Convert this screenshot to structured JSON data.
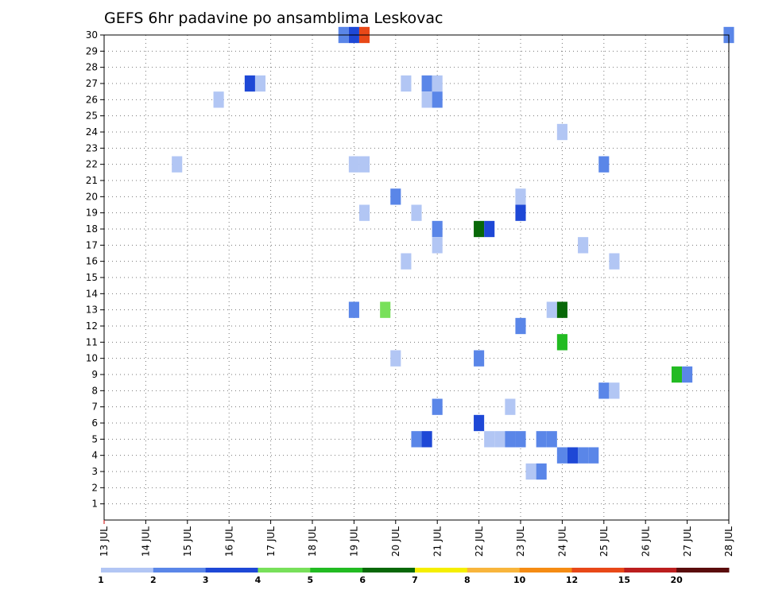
{
  "chart_data": {
    "type": "heatmap",
    "title": "GEFS 6hr padavine po ansamblima Leskovac",
    "x_ticks": [
      "13 JUL",
      "14 JUL",
      "15 JUL",
      "16 JUL",
      "17 JUL",
      "18 JUL",
      "19 JUL",
      "20 JUL",
      "21 JUL",
      "22 JUL",
      "23 JUL",
      "24 JUL",
      "25 JUL",
      "26 JUL",
      "27 JUL",
      "28 JUL"
    ],
    "y_ticks": [
      1,
      2,
      3,
      4,
      5,
      6,
      7,
      8,
      9,
      10,
      11,
      12,
      13,
      14,
      15,
      16,
      17,
      18,
      19,
      20,
      21,
      22,
      23,
      24,
      25,
      26,
      27,
      28,
      29,
      30
    ],
    "x_range_days": [
      13,
      28
    ],
    "y_range": [
      0,
      30
    ],
    "grid": true,
    "levels": [
      "1",
      "2",
      "3",
      "4",
      "5",
      "6",
      "7",
      "8",
      "10",
      "12",
      "15",
      "20"
    ],
    "colors": [
      "#b2c6f4",
      "#5a86e8",
      "#1e48d6",
      "#78e05a",
      "#22bb22",
      "#086808",
      "#f5ef00",
      "#f8b53c",
      "#f58c14",
      "#e84818",
      "#bb1e1e",
      "#5a0c0c"
    ],
    "cells": [
      {
        "t": "18.75",
        "m": 30,
        "v": 2
      },
      {
        "t": "19.0",
        "m": 30,
        "v": 3
      },
      {
        "t": "19.25",
        "m": 30,
        "v": 10
      },
      {
        "t": "28.0",
        "m": 30,
        "v": 2
      },
      {
        "t": "16.5",
        "m": 27,
        "v": 3
      },
      {
        "t": "16.75",
        "m": 27,
        "v": 1
      },
      {
        "t": "20.25",
        "m": 27,
        "v": 1
      },
      {
        "t": "20.75",
        "m": 27,
        "v": 2
      },
      {
        "t": "21.0",
        "m": 27,
        "v": 1
      },
      {
        "t": "15.75",
        "m": 26,
        "v": 1
      },
      {
        "t": "20.75",
        "m": 26,
        "v": 1
      },
      {
        "t": "21.0",
        "m": 26,
        "v": 2
      },
      {
        "t": "24.0",
        "m": 24,
        "v": 1
      },
      {
        "t": "14.75",
        "m": 22,
        "v": 1
      },
      {
        "t": "19.0",
        "m": 22,
        "v": 1
      },
      {
        "t": "19.25",
        "m": 22,
        "v": 1
      },
      {
        "t": "25.0",
        "m": 22,
        "v": 2
      },
      {
        "t": "20.0",
        "m": 20,
        "v": 2
      },
      {
        "t": "23.0",
        "m": 20,
        "v": 1
      },
      {
        "t": "19.25",
        "m": 19,
        "v": 1
      },
      {
        "t": "20.5",
        "m": 19,
        "v": 1
      },
      {
        "t": "23.0",
        "m": 19,
        "v": 3
      },
      {
        "t": "21.0",
        "m": 18,
        "v": 2
      },
      {
        "t": "22.0",
        "m": 18,
        "v": 6
      },
      {
        "t": "22.25",
        "m": 18,
        "v": 3
      },
      {
        "t": "21.0",
        "m": 17,
        "v": 1
      },
      {
        "t": "24.5",
        "m": 17,
        "v": 1
      },
      {
        "t": "20.25",
        "m": 16,
        "v": 1
      },
      {
        "t": "25.25",
        "m": 16,
        "v": 1
      },
      {
        "t": "19.0",
        "m": 13,
        "v": 2
      },
      {
        "t": "19.75",
        "m": 13,
        "v": 4
      },
      {
        "t": "23.75",
        "m": 13,
        "v": 1
      },
      {
        "t": "24.0",
        "m": 13,
        "v": 6
      },
      {
        "t": "23.0",
        "m": 12,
        "v": 2
      },
      {
        "t": "24.0",
        "m": 11,
        "v": 5
      },
      {
        "t": "20.0",
        "m": 10,
        "v": 1
      },
      {
        "t": "22.0",
        "m": 10,
        "v": 2
      },
      {
        "t": "26.75",
        "m": 9,
        "v": 5
      },
      {
        "t": "27.0",
        "m": 9,
        "v": 2
      },
      {
        "t": "25.0",
        "m": 8,
        "v": 2
      },
      {
        "t": "25.25",
        "m": 8,
        "v": 1
      },
      {
        "t": "21.0",
        "m": 7,
        "v": 2
      },
      {
        "t": "22.75",
        "m": 7,
        "v": 1
      },
      {
        "t": "22.0",
        "m": 6,
        "v": 3
      },
      {
        "t": "20.5",
        "m": 5,
        "v": 2
      },
      {
        "t": "20.75",
        "m": 5,
        "v": 3
      },
      {
        "t": "22.25",
        "m": 5,
        "v": 1
      },
      {
        "t": "22.5",
        "m": 5,
        "v": 1
      },
      {
        "t": "22.75",
        "m": 5,
        "v": 2
      },
      {
        "t": "23.0",
        "m": 5,
        "v": 2
      },
      {
        "t": "23.5",
        "m": 5,
        "v": 2
      },
      {
        "t": "23.75",
        "m": 5,
        "v": 2
      },
      {
        "t": "24.0",
        "m": 4,
        "v": 2
      },
      {
        "t": "24.25",
        "m": 4,
        "v": 3
      },
      {
        "t": "24.5",
        "m": 4,
        "v": 2
      },
      {
        "t": "24.75",
        "m": 4,
        "v": 2
      },
      {
        "t": "23.25",
        "m": 3,
        "v": 1
      },
      {
        "t": "23.5",
        "m": 3,
        "v": 2
      }
    ]
  }
}
